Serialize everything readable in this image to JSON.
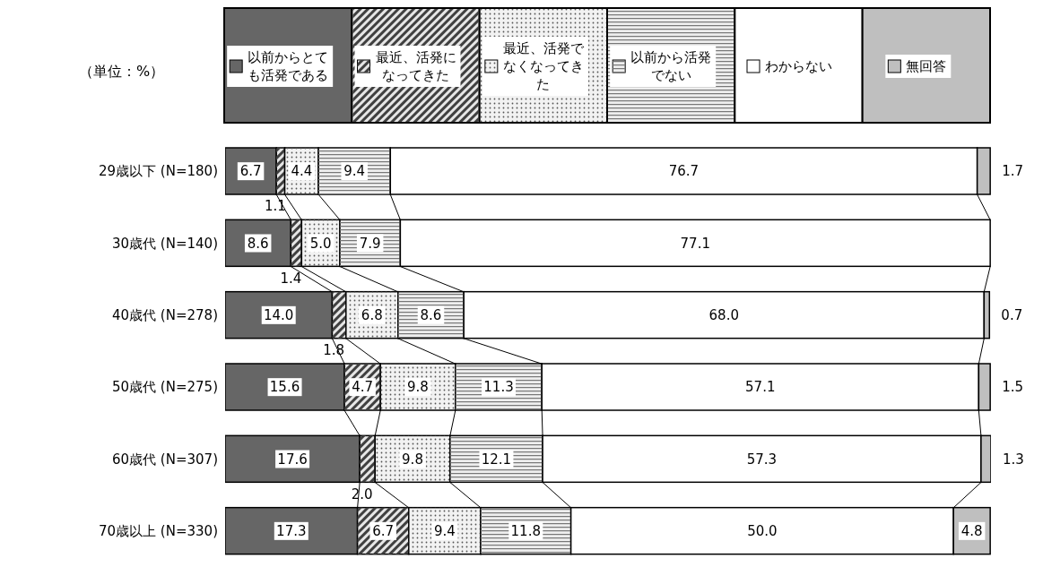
{
  "chart_data": {
    "type": "bar",
    "orientation": "horizontal",
    "stacked": true,
    "legend": "top",
    "annotations": [
      "（単位：%）"
    ],
    "categories": [
      "29歳以下 (N=180)",
      "30歳代 (N=140)",
      "40歳代 (N=278)",
      "50歳代 (N=275)",
      "60歳代 (N=307)",
      "70歳以上 (N=330)"
    ],
    "series": [
      {
        "name": "以前からとても活発である",
        "color": "#666666",
        "values": [
          6.7,
          8.6,
          14.0,
          15.6,
          17.6,
          17.3
        ],
        "value_labels": [
          "6.7",
          "8.6",
          "14.0",
          "15.6",
          "17.6",
          "17.3"
        ]
      },
      {
        "name": "最近、活発になってきた",
        "color": "#e6e6e6",
        "values": [
          1.1,
          1.4,
          1.8,
          4.7,
          2.0,
          6.7
        ],
        "value_labels": [
          "1.1",
          "1.4",
          "1.8",
          "4.7",
          "2.0",
          "6.7"
        ]
      },
      {
        "name": "最近、活発でなくなってきた",
        "color": "#f2f2f2",
        "values": [
          4.4,
          5.0,
          6.8,
          9.8,
          9.8,
          9.4
        ],
        "value_labels": [
          "4.4",
          "5.0",
          "6.8",
          "9.8",
          "9.8",
          "9.4"
        ]
      },
      {
        "name": "以前から活発でない",
        "color": "#eeeeee",
        "values": [
          9.4,
          7.9,
          8.6,
          11.3,
          12.1,
          11.8
        ],
        "value_labels": [
          "9.4",
          "7.9",
          "8.6",
          "11.3",
          "12.1",
          "11.8"
        ]
      },
      {
        "name": "わからない",
        "color": "#ffffff",
        "values": [
          76.7,
          77.1,
          68.0,
          57.1,
          57.3,
          50.0
        ],
        "value_labels": [
          "76.7",
          "77.1",
          "68.0",
          "57.1",
          "57.3",
          "50.0"
        ]
      },
      {
        "name": "無回答",
        "color": "#bfbfbf",
        "values": [
          1.7,
          0,
          0.7,
          1.5,
          1.3,
          4.8
        ],
        "value_labels": [
          "1.7",
          null,
          "0.7",
          "1.5",
          "1.3",
          "4.8"
        ]
      }
    ]
  }
}
